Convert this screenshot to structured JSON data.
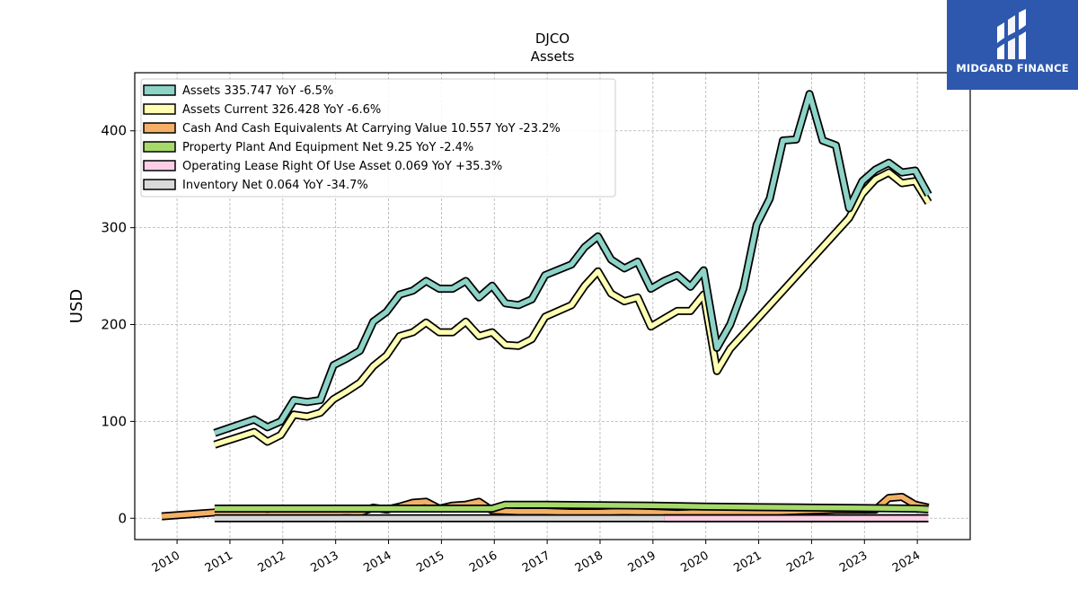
{
  "chart_data": {
    "type": "line",
    "title": "DJCO",
    "subtitle": "Assets",
    "ylabel": "USD",
    "xlabel": "",
    "ylim": [
      -22,
      460
    ],
    "xlim": [
      2009.2,
      2025.0
    ],
    "yticks": [
      0,
      100,
      200,
      300,
      400
    ],
    "xticks": [
      "2010",
      "2011",
      "2012",
      "2013",
      "2014",
      "2015",
      "2016",
      "2017",
      "2018",
      "2019",
      "2020",
      "2021",
      "2022",
      "2023",
      "2024"
    ],
    "grid": true,
    "legend_position": "top-left",
    "series": [
      {
        "name": "Assets",
        "legend_label": "Assets  335.747 YoY -6.5%",
        "color": "#8dd3c7",
        "x": [
          2010.71,
          2011.46,
          2011.71,
          2011.96,
          2012.21,
          2012.46,
          2012.71,
          2012.96,
          2013.21,
          2013.46,
          2013.71,
          2013.96,
          2014.21,
          2014.46,
          2014.71,
          2014.96,
          2015.21,
          2015.46,
          2015.71,
          2015.96,
          2016.21,
          2016.46,
          2016.71,
          2016.96,
          2017.46,
          2017.71,
          2017.96,
          2018.21,
          2018.46,
          2018.71,
          2018.96,
          2019.21,
          2019.46,
          2019.71,
          2019.96,
          2020.21,
          2020.46,
          2020.71,
          2020.96,
          2021.21,
          2021.46,
          2021.71,
          2021.96,
          2022.21,
          2022.46,
          2022.71,
          2022.96,
          2023.21,
          2023.46,
          2023.71,
          2023.96,
          2024.21
        ],
        "values": [
          88,
          102,
          94,
          100,
          122,
          120,
          122,
          158,
          165,
          173,
          203,
          213,
          231,
          235,
          245,
          237,
          237,
          245,
          228,
          240,
          222,
          220,
          226,
          251,
          262,
          280,
          291,
          267,
          258,
          265,
          237,
          245,
          251,
          239,
          256,
          176,
          200,
          237,
          303,
          330,
          390,
          391,
          438,
          390,
          385,
          320,
          348,
          360,
          367,
          357,
          359,
          334
        ]
      },
      {
        "name": "Assets Current",
        "legend_label": "Assets Current  326.428 YoY -6.6%",
        "color": "#ffffb3",
        "x": [
          2010.71,
          2011.46,
          2011.71,
          2011.96,
          2012.21,
          2012.46,
          2012.71,
          2012.96,
          2013.21,
          2013.46,
          2013.71,
          2013.96,
          2014.21,
          2014.46,
          2014.71,
          2014.96,
          2015.21,
          2015.46,
          2015.71,
          2015.96,
          2016.21,
          2016.46,
          2016.71,
          2016.96,
          2017.46,
          2017.71,
          2017.96,
          2018.21,
          2018.46,
          2018.71,
          2018.96,
          2019.21,
          2019.46,
          2019.71,
          2019.96,
          2020.21,
          2020.46,
          2022.71,
          2022.96,
          2023.21,
          2023.46,
          2023.71,
          2023.96,
          2024.21
        ],
        "values": [
          76,
          89,
          79,
          86,
          107,
          105,
          109,
          123,
          131,
          140,
          157,
          168,
          188,
          192,
          202,
          192,
          192,
          203,
          188,
          192,
          179,
          178,
          185,
          208,
          220,
          240,
          255,
          232,
          224,
          228,
          198,
          206,
          214,
          214,
          231,
          152,
          175,
          310,
          335,
          350,
          357,
          346,
          348,
          326
        ]
      },
      {
        "name": "Cash And Cash Equivalents At Carrying Value",
        "legend_label": "Cash And Cash Equivalents At Carrying Value  10.557 YoY -23.2%",
        "color": "#f4b066",
        "x": [
          2009.71,
          2010.46,
          2010.71,
          2011.46,
          2011.71,
          2011.96,
          2012.21,
          2012.46,
          2012.71,
          2012.96,
          2013.21,
          2013.46,
          2013.71,
          2013.96,
          2014.21,
          2014.46,
          2014.71,
          2014.96,
          2015.21,
          2015.46,
          2015.71,
          2015.96,
          2016.46,
          2016.96,
          2017.46,
          2017.96,
          2018.46,
          2018.96,
          2019.46,
          2019.96,
          2020.46,
          2020.96,
          2021.46,
          2021.96,
          2022.46,
          2022.96,
          2023.21,
          2023.46,
          2023.71,
          2023.96,
          2024.21
        ],
        "values": [
          2,
          5,
          6,
          4,
          3,
          4,
          6,
          5,
          5,
          6,
          7,
          6,
          11,
          9,
          12,
          16,
          17,
          10,
          13,
          14,
          17,
          8,
          7,
          7,
          6,
          6,
          7,
          6,
          5,
          6,
          6,
          5,
          7,
          8,
          9,
          9,
          9,
          21,
          22,
          14,
          11
        ]
      },
      {
        "name": "Property Plant And Equipment Net",
        "legend_label": "Property Plant And Equipment Net  9.25 YoY -2.4%",
        "color": "#a6d96a",
        "x": [
          2010.71,
          2011.96,
          2012.96,
          2013.96,
          2014.96,
          2015.96,
          2016.21,
          2016.96,
          2017.96,
          2018.96,
          2019.96,
          2020.96,
          2021.96,
          2022.96,
          2023.96,
          2024.21
        ],
        "values": [
          10,
          10,
          10,
          10,
          10,
          10,
          14,
          14,
          13.5,
          13,
          12,
          11.5,
          11,
          10.5,
          10,
          9.25
        ]
      },
      {
        "name": "Operating Lease Right Of Use Asset",
        "legend_label": "Operating Lease Right Of Use Asset  0.069 YoY +35.3%",
        "color": "#fccde5",
        "x": [
          2019.21,
          2019.96,
          2020.96,
          2021.96,
          2022.96,
          2023.96,
          2024.21
        ],
        "values": [
          0.05,
          0.05,
          0.05,
          0.06,
          0.06,
          0.05,
          0.069
        ]
      },
      {
        "name": "Inventory Net",
        "legend_label": "Inventory Net  0.064 YoY -34.7%",
        "color": "#d9d9d9",
        "x": [
          2010.71,
          2012.96,
          2014.96,
          2016.96,
          2018.96,
          2020.96,
          2022.96,
          2024.21
        ],
        "values": [
          0.1,
          0.1,
          0.1,
          0.1,
          0.1,
          0.1,
          0.1,
          0.064
        ]
      }
    ]
  },
  "logo": {
    "text": "MIDGARD FINANCE",
    "icon": "midgard-logo-icon",
    "background": "#2d58ad"
  }
}
